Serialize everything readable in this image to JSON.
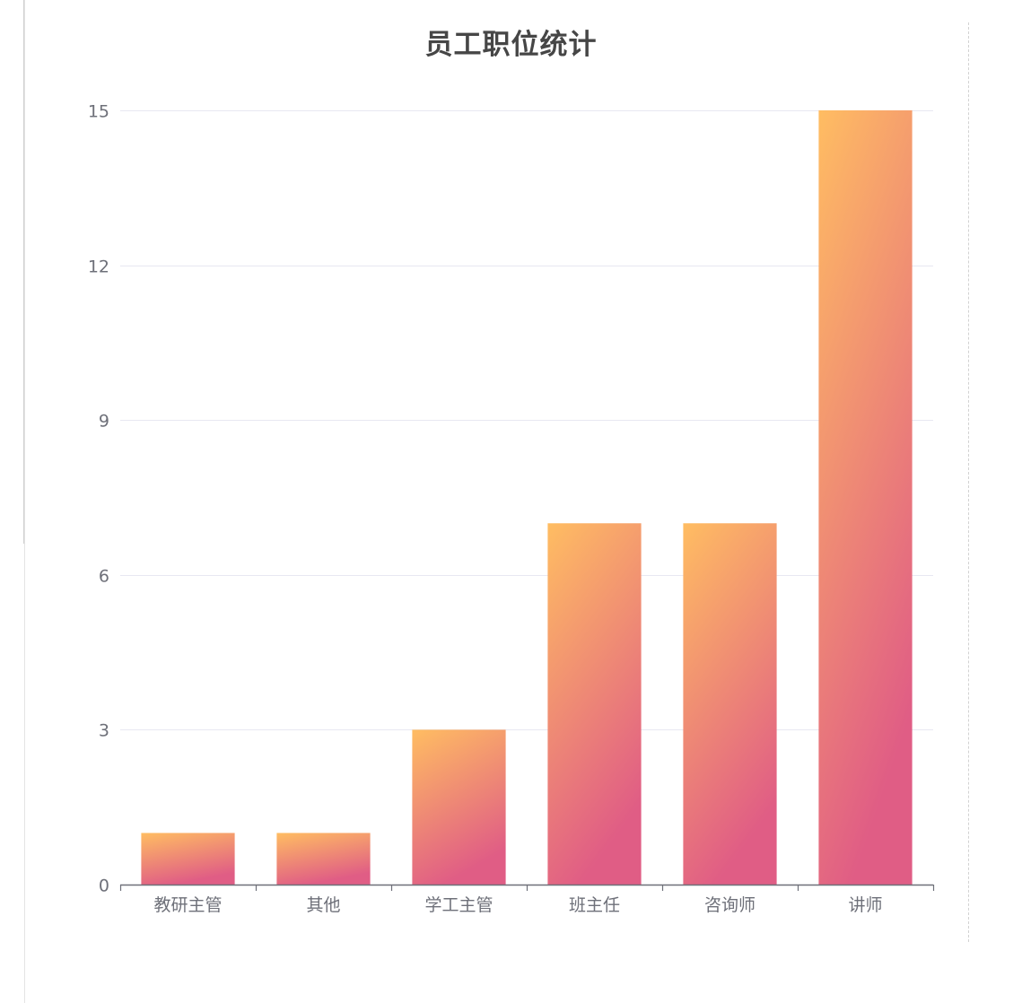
{
  "chart_data": {
    "type": "bar",
    "title": "员工职位统计",
    "categories": [
      "教研主管",
      "其他",
      "学工主管",
      "班主任",
      "咨询师",
      "讲师"
    ],
    "values": [
      1,
      1,
      3,
      7,
      7,
      15
    ],
    "ylim": [
      0,
      15
    ],
    "yticks": [
      "0",
      "3",
      "6",
      "9",
      "12",
      "15"
    ],
    "xlabel": "",
    "ylabel": "",
    "grid": true,
    "colors": {
      "bar_top": "#ffbd62",
      "bar_bottom": "#e05d85",
      "grid": "#e8e8f2",
      "axis": "#6e7079"
    }
  }
}
